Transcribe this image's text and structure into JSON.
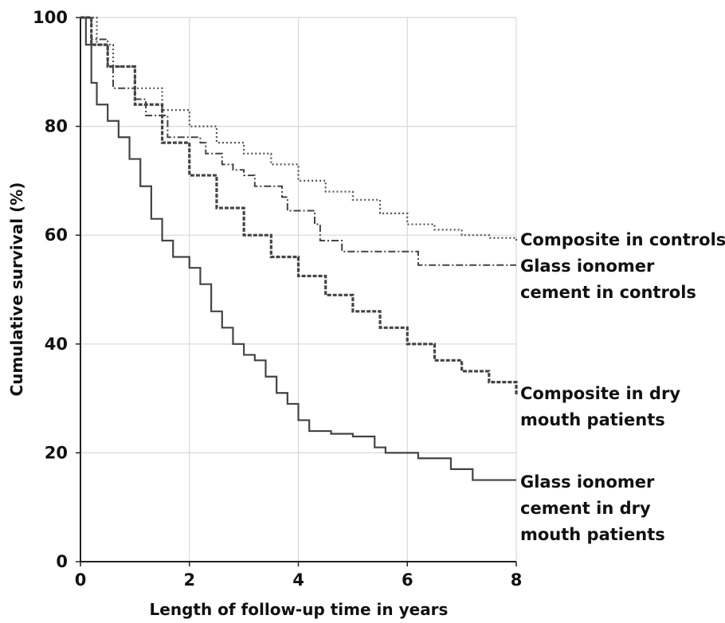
{
  "chart_data": {
    "type": "line",
    "x_label": "Length of follow-up time in years",
    "y_label": "Cumulative survival (%)",
    "xlim": [
      0,
      8
    ],
    "ylim": [
      0,
      100
    ],
    "xticks": [
      0,
      2,
      4,
      6,
      8
    ],
    "yticks": [
      0,
      20,
      40,
      60,
      80,
      100
    ],
    "grid": true,
    "step": true,
    "series": [
      {
        "name": "Composite in controls",
        "color": "#555555",
        "dash": "dotted",
        "x": [
          0,
          0.3,
          0.6,
          1,
          1.5,
          2,
          2.5,
          3,
          3.5,
          4,
          4.5,
          5,
          5.5,
          6,
          6.5,
          7,
          7.5,
          8
        ],
        "values": [
          100,
          95,
          91,
          87,
          83,
          80,
          77,
          75,
          73,
          70,
          68,
          66.5,
          64,
          62,
          61,
          60,
          59.5,
          59
        ]
      },
      {
        "name": "Glass ionomer\ncement in controls",
        "color": "#444444",
        "dash": "dashdot",
        "x": [
          0,
          0.2,
          0.5,
          0.6,
          1,
          1.2,
          1.6,
          2.2,
          2.3,
          2.6,
          2.8,
          3.0,
          3.2,
          3.7,
          3.8,
          4.3,
          4.4,
          4.8,
          6.1,
          6.2,
          8
        ],
        "values": [
          100,
          96,
          91,
          87,
          85,
          82,
          78,
          77,
          75,
          73,
          72,
          71,
          69,
          67,
          64.5,
          62,
          59,
          57,
          57,
          54.5,
          54.5
        ]
      },
      {
        "name": "Composite in dry\nmouth patients",
        "color": "#444444",
        "dash": "dashed",
        "x": [
          0,
          0.2,
          0.5,
          1,
          1.5,
          2,
          2.5,
          3,
          3.5,
          4,
          4.5,
          5,
          5.5,
          6,
          6.5,
          7,
          7.5,
          8
        ],
        "values": [
          100,
          95,
          91,
          84,
          77,
          71,
          65,
          60,
          56,
          52.5,
          49,
          46,
          43,
          40,
          37,
          35,
          33,
          30.5
        ]
      },
      {
        "name": "Glass ionomer\ncement in dry\nmouth patients",
        "color": "#444444",
        "dash": "solid",
        "x": [
          0,
          0.1,
          0.2,
          0.3,
          0.5,
          0.7,
          0.9,
          1.1,
          1.3,
          1.5,
          1.7,
          2.0,
          2.2,
          2.4,
          2.6,
          2.8,
          3.0,
          3.2,
          3.4,
          3.6,
          3.8,
          4.0,
          4.2,
          4.6,
          5.0,
          5.4,
          5.6,
          6.2,
          6.8,
          7.2,
          8.0
        ],
        "values": [
          100,
          95,
          88,
          84,
          81,
          78,
          74,
          69,
          63,
          59,
          56,
          54,
          51,
          46,
          43,
          40,
          38,
          37,
          34,
          31,
          29,
          26,
          24,
          23.5,
          23,
          21,
          20,
          19,
          17,
          15,
          15
        ]
      }
    ]
  }
}
